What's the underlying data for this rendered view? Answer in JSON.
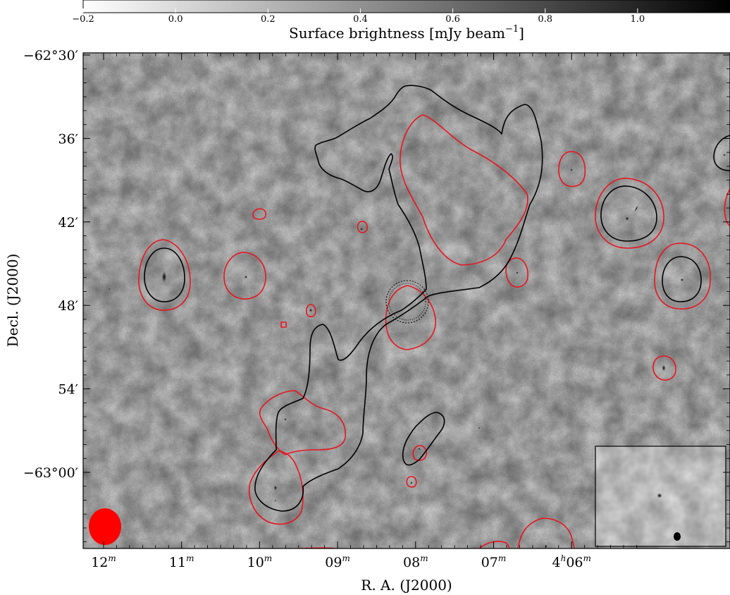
{
  "colorbar": {
    "label_main": "Surface brightness [mJy beam",
    "label_exp": "−1",
    "label_close": "]",
    "ticks": [
      {
        "value": -0.2,
        "label": "−0.2"
      },
      {
        "value": 0.0,
        "label": "0.0"
      },
      {
        "value": 0.2,
        "label": "0.2"
      },
      {
        "value": 0.4,
        "label": "0.4"
      },
      {
        "value": 0.6,
        "label": "0.6"
      },
      {
        "value": 0.8,
        "label": "0.8"
      },
      {
        "value": 1.0,
        "label": "1.0"
      }
    ],
    "range": [
      -0.2,
      1.2
    ]
  },
  "axes": {
    "xlabel": "R. A. (J2000)",
    "ylabel": "Decl. (J2000)",
    "x_ticks": [
      {
        "ra_min": 12,
        "label": "12",
        "sup": "m"
      },
      {
        "ra_min": 11,
        "label": "11",
        "sup": "m"
      },
      {
        "ra_min": 10,
        "label": "10",
        "sup": "m"
      },
      {
        "ra_min": 9,
        "label": "09",
        "sup": "m"
      },
      {
        "ra_min": 8,
        "label": "08",
        "sup": "m"
      },
      {
        "ra_min": 7,
        "label": "07",
        "sup": "m"
      },
      {
        "ra_min": 6,
        "label": "4",
        "sup": "h",
        "label2": "06",
        "sup2": "m"
      }
    ],
    "y_ticks": [
      {
        "dec_arcmin": 30,
        "label": "−62°30′"
      },
      {
        "dec_arcmin": 36,
        "label": "36′"
      },
      {
        "dec_arcmin": 42,
        "label": "42′"
      },
      {
        "dec_arcmin": 48,
        "label": "48′"
      },
      {
        "dec_arcmin": 54,
        "label": "54′"
      },
      {
        "dec_arcmin": 60,
        "label": "−63°00′"
      }
    ]
  },
  "colors": {
    "red_contour": "#e8141e",
    "black_contour": "#000000",
    "beam": "#ff0000",
    "background": "#dddddd"
  }
}
